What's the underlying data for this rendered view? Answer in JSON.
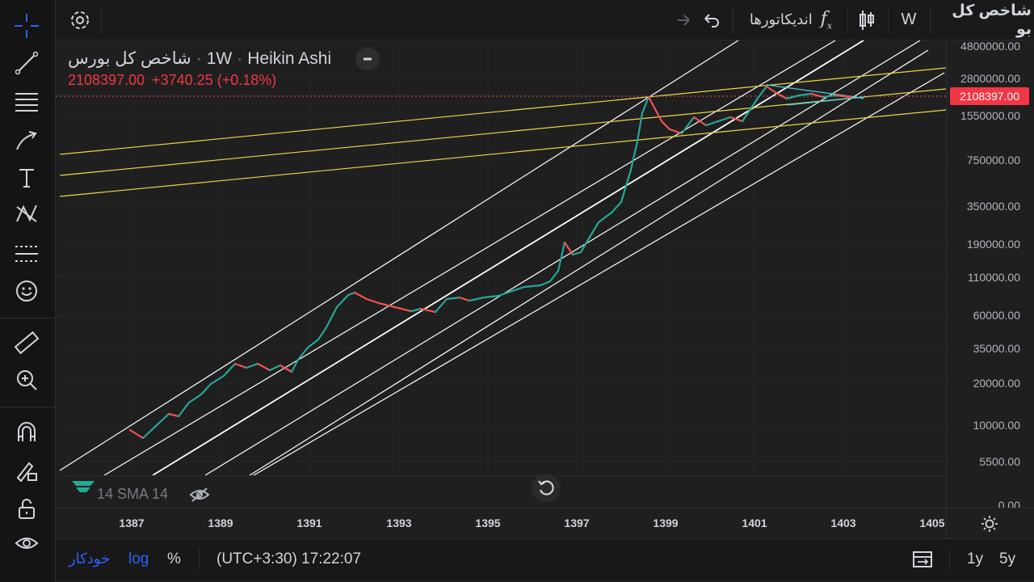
{
  "topbar": {
    "symbol_label": "شاخص کل بو",
    "interval": "W",
    "indicators_label": "اندیکاتورها"
  },
  "legend": {
    "symbol": "شاخص کل بورس",
    "interval": "1W",
    "chart_type": "Heikin Ashi",
    "close": "2108397.00",
    "change": "+3740.25 (+0.18%)"
  },
  "price_axis": {
    "labels": [
      "4800000.00",
      "2800000.00",
      "1550000.00",
      "750000.00",
      "350000.00",
      "190000.00",
      "110000.00",
      "60000.00",
      "35000.00",
      "20000.00",
      "10000.00",
      "5500.00",
      "0.00"
    ],
    "current_price": "2108397.00"
  },
  "time_axis": {
    "labels": [
      "1387",
      "1389",
      "1391",
      "1393",
      "1395",
      "1397",
      "1399",
      "1401",
      "1403",
      "1405"
    ]
  },
  "indicator": {
    "label": "14 SMA 14"
  },
  "bottombar": {
    "auto": "خودکار",
    "log": "log",
    "percent": "%",
    "timezone_time": "(UTC+3:30) 17:22:07",
    "range_1y": "1y",
    "range_5y": "5y"
  },
  "colors": {
    "up": "#26a69a",
    "down": "#ef5350",
    "channel": "#ffffff",
    "fan": "#e8d84a",
    "accent": "#2962ff",
    "price_tag": "#f23645"
  },
  "chart_data": {
    "type": "candlestick",
    "style": "Heikin Ashi",
    "scale": "log",
    "x": [
      "1387",
      "1389",
      "1391",
      "1393",
      "1395",
      "1397",
      "1399",
      "1401",
      "1403"
    ],
    "y": [
      9000,
      25000,
      35000,
      80000,
      75000,
      190000,
      2000000,
      2700000,
      2108397
    ]
  }
}
